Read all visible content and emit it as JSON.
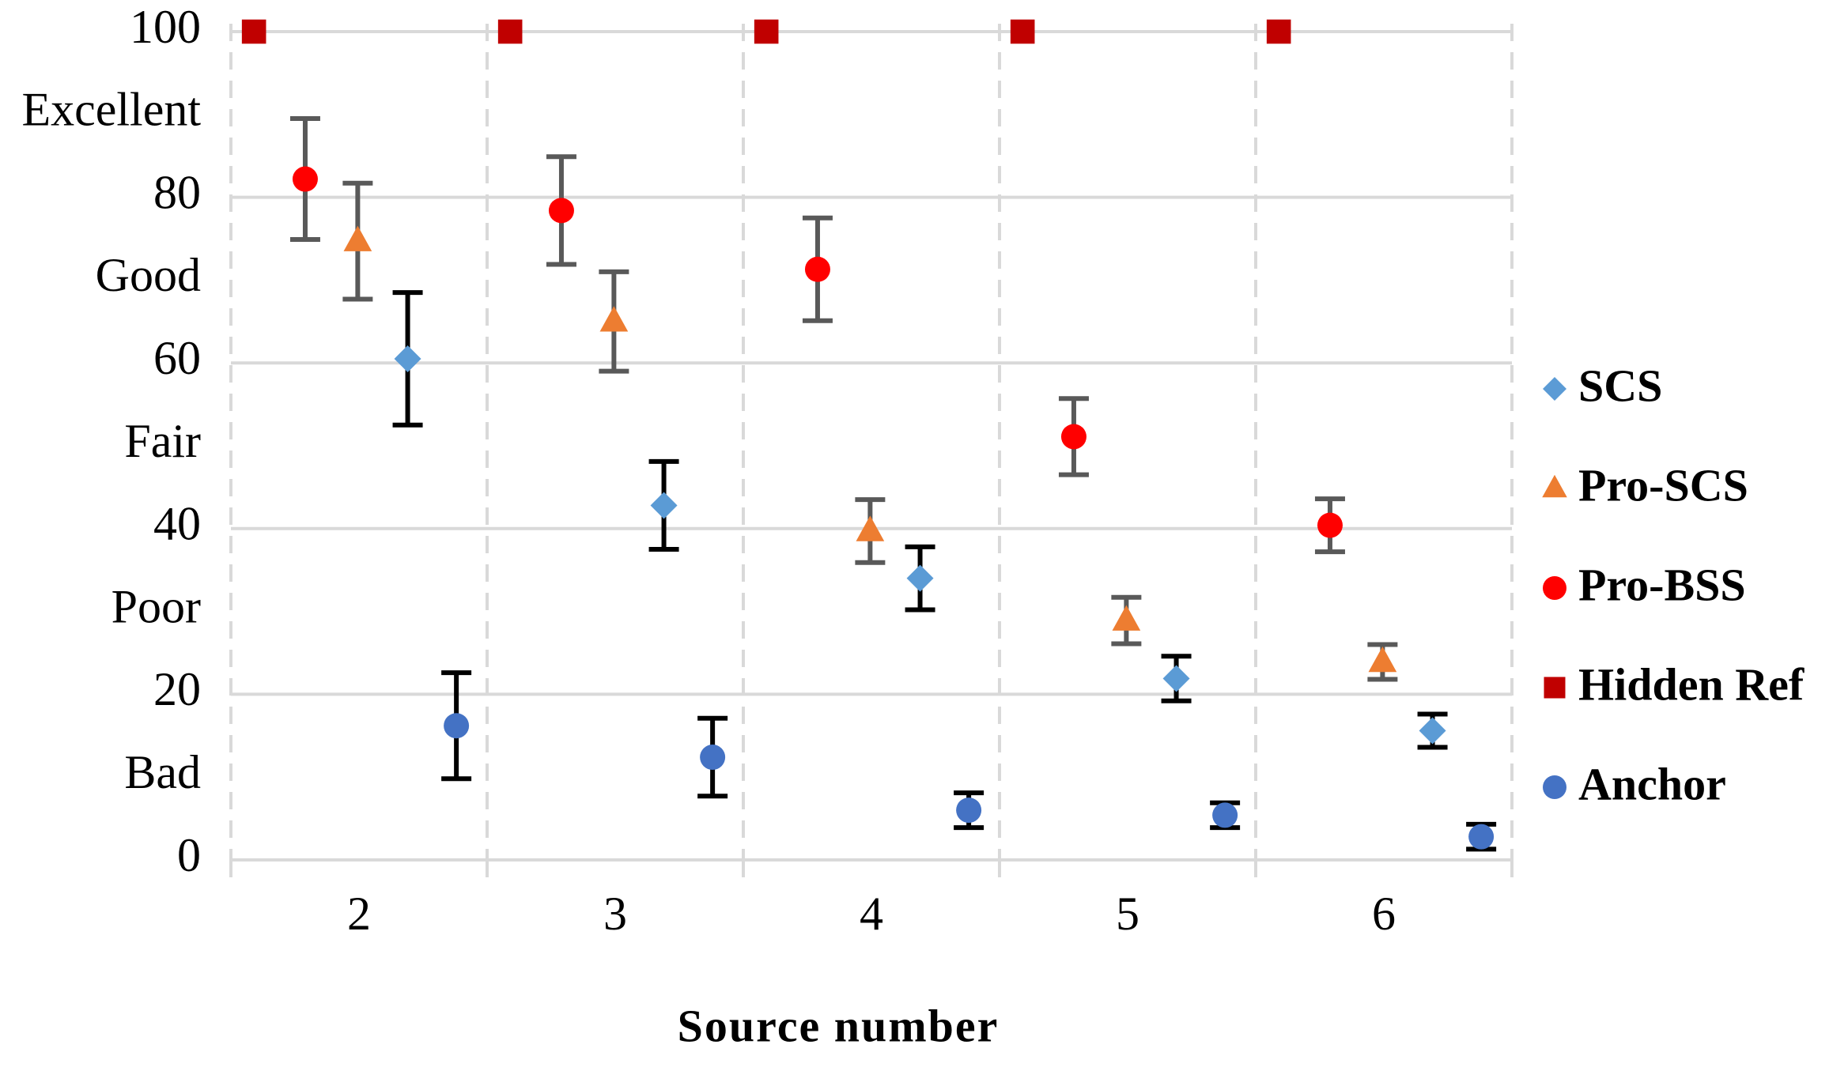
{
  "chart_data": {
    "type": "errorbar-scatter",
    "x_title": "Source number",
    "categories": [
      "2",
      "3",
      "4",
      "5",
      "6"
    ],
    "ylim": [
      0,
      100
    ],
    "yticks": [
      0,
      20,
      40,
      60,
      80,
      100
    ],
    "quality_labels": [
      {
        "value": 90,
        "label": "Excellent"
      },
      {
        "value": 70,
        "label": "Good"
      },
      {
        "value": 50,
        "label": "Fair"
      },
      {
        "value": 30,
        "label": "Poor"
      },
      {
        "value": 10,
        "label": "Bad"
      }
    ],
    "grid": true,
    "legend": "right",
    "series": [
      {
        "name": "SCS",
        "color": "#5b9bd5",
        "marker": "diamond",
        "error_color": "#000000",
        "values": [
          60.5,
          42.8,
          34,
          21.9,
          15.6
        ],
        "errors": [
          8,
          5.3,
          3.8,
          2.7,
          2
        ]
      },
      {
        "name": "Pro-SCS",
        "color": "#ed7d31",
        "marker": "triangle",
        "error_color": "#595959",
        "values": [
          74.7,
          65,
          39.7,
          28.9,
          23.9
        ],
        "errors": [
          7,
          6,
          3.8,
          2.8,
          2.1
        ]
      },
      {
        "name": "Pro-BSS",
        "color": "#ff0000",
        "marker": "circle",
        "error_color": "#595959",
        "values": [
          82.2,
          78.4,
          71.3,
          51.1,
          40.4
        ],
        "errors": [
          7.3,
          6.5,
          6.2,
          4.6,
          3.2
        ]
      },
      {
        "name": "Hidden Ref",
        "color": "#c00000",
        "marker": "square",
        "values": [
          100,
          100,
          100,
          100,
          100
        ]
      },
      {
        "name": "Anchor",
        "color": "#4472c4",
        "marker": "circle",
        "error_color": "#000000",
        "values": [
          16.2,
          12.4,
          6,
          5.4,
          2.8
        ],
        "errors": [
          6.4,
          4.7,
          2.1,
          1.5,
          1.5
        ]
      }
    ]
  }
}
